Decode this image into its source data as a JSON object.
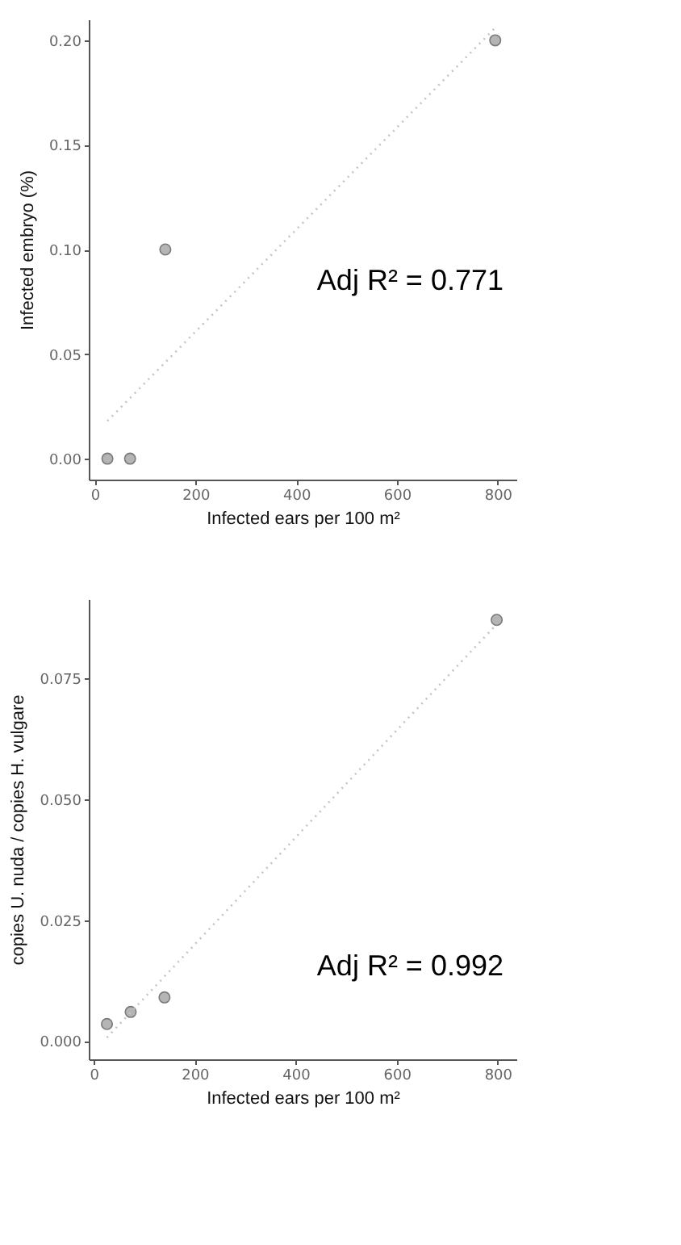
{
  "chart_data": [
    {
      "type": "scatter",
      "xlabel": "Infected ears per 100 m²",
      "ylabel": "Infected embryo (%)",
      "annotations": [
        "Adj R² = 0.771"
      ],
      "xlim": [
        -12,
        837
      ],
      "xticks": [
        0,
        200,
        400,
        600,
        800
      ],
      "ylim": [
        -0.01,
        0.21
      ],
      "yticks": [
        {
          "value": 0,
          "label": "0.00"
        },
        {
          "value": 0.05,
          "label": "0.05"
        },
        {
          "value": 0.1,
          "label": "0.10"
        },
        {
          "value": 0.15,
          "label": "0.15"
        },
        {
          "value": 0.2,
          "label": "0.20"
        }
      ],
      "grid": false,
      "marker": "circle",
      "series": [
        {
          "type": "scatter",
          "color": "#b5b5b5",
          "x": [
            25,
            70,
            140,
            795
          ],
          "values": [
            0,
            0,
            0.1,
            0.2
          ]
        },
        {
          "type": "line",
          "color": "#c4c4c4",
          "line_style": "dotted",
          "marker": "none",
          "x": [
            25,
            795
          ],
          "values": [
            0.018,
            0.206
          ]
        }
      ]
    },
    {
      "type": "scatter",
      "xlabel": "Infected ears per 100 m²",
      "ylabel": "copies U. nuda / copies H. vulgare",
      "annotations": [
        "Adj R² = 0.992"
      ],
      "xlim": [
        -10,
        837
      ],
      "xticks": [
        0,
        200,
        400,
        600,
        800
      ],
      "ylim": [
        -0.0038,
        0.0914
      ],
      "yticks": [
        {
          "value": 0,
          "label": "0.000"
        },
        {
          "value": 0.025,
          "label": "0.025"
        },
        {
          "value": 0.05,
          "label": "0.050"
        },
        {
          "value": 0.075,
          "label": "0.075"
        }
      ],
      "grid": false,
      "marker": "circle",
      "series": [
        {
          "type": "scatter",
          "color": "#b5b5b5",
          "x": [
            26,
            73,
            140,
            798
          ],
          "values": [
            0.0035,
            0.006,
            0.009,
            0.0871
          ]
        },
        {
          "type": "line",
          "color": "#c4c4c4",
          "line_style": "dotted",
          "marker": "none",
          "x": [
            26,
            798
          ],
          "values": [
            0.0007,
            0.0862
          ]
        }
      ]
    }
  ]
}
